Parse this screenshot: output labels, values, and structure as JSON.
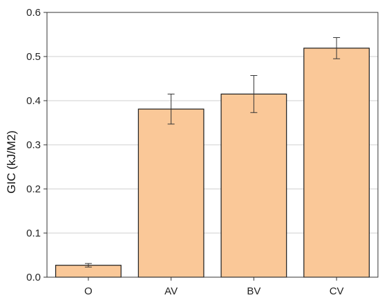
{
  "chart_data": {
    "type": "bar",
    "title": "",
    "xlabel": "",
    "ylabel": "GIC (kJ/M2)",
    "categories": [
      "O",
      "AV",
      "BV",
      "CV"
    ],
    "values": [
      0.027,
      0.381,
      0.415,
      0.519
    ],
    "errors": [
      0.004,
      0.034,
      0.042,
      0.024
    ],
    "ylim": [
      0,
      0.6
    ],
    "yticks": [
      "0.0",
      "0.1",
      "0.2",
      "0.3",
      "0.4",
      "0.5",
      "0.6"
    ],
    "grid": "horizontal",
    "legend": "none",
    "colors": {
      "bar_fill": "#FAC898",
      "bar_stroke": "#1a1a1a",
      "grid": "#cfcfcf",
      "axis": "#333333"
    }
  }
}
